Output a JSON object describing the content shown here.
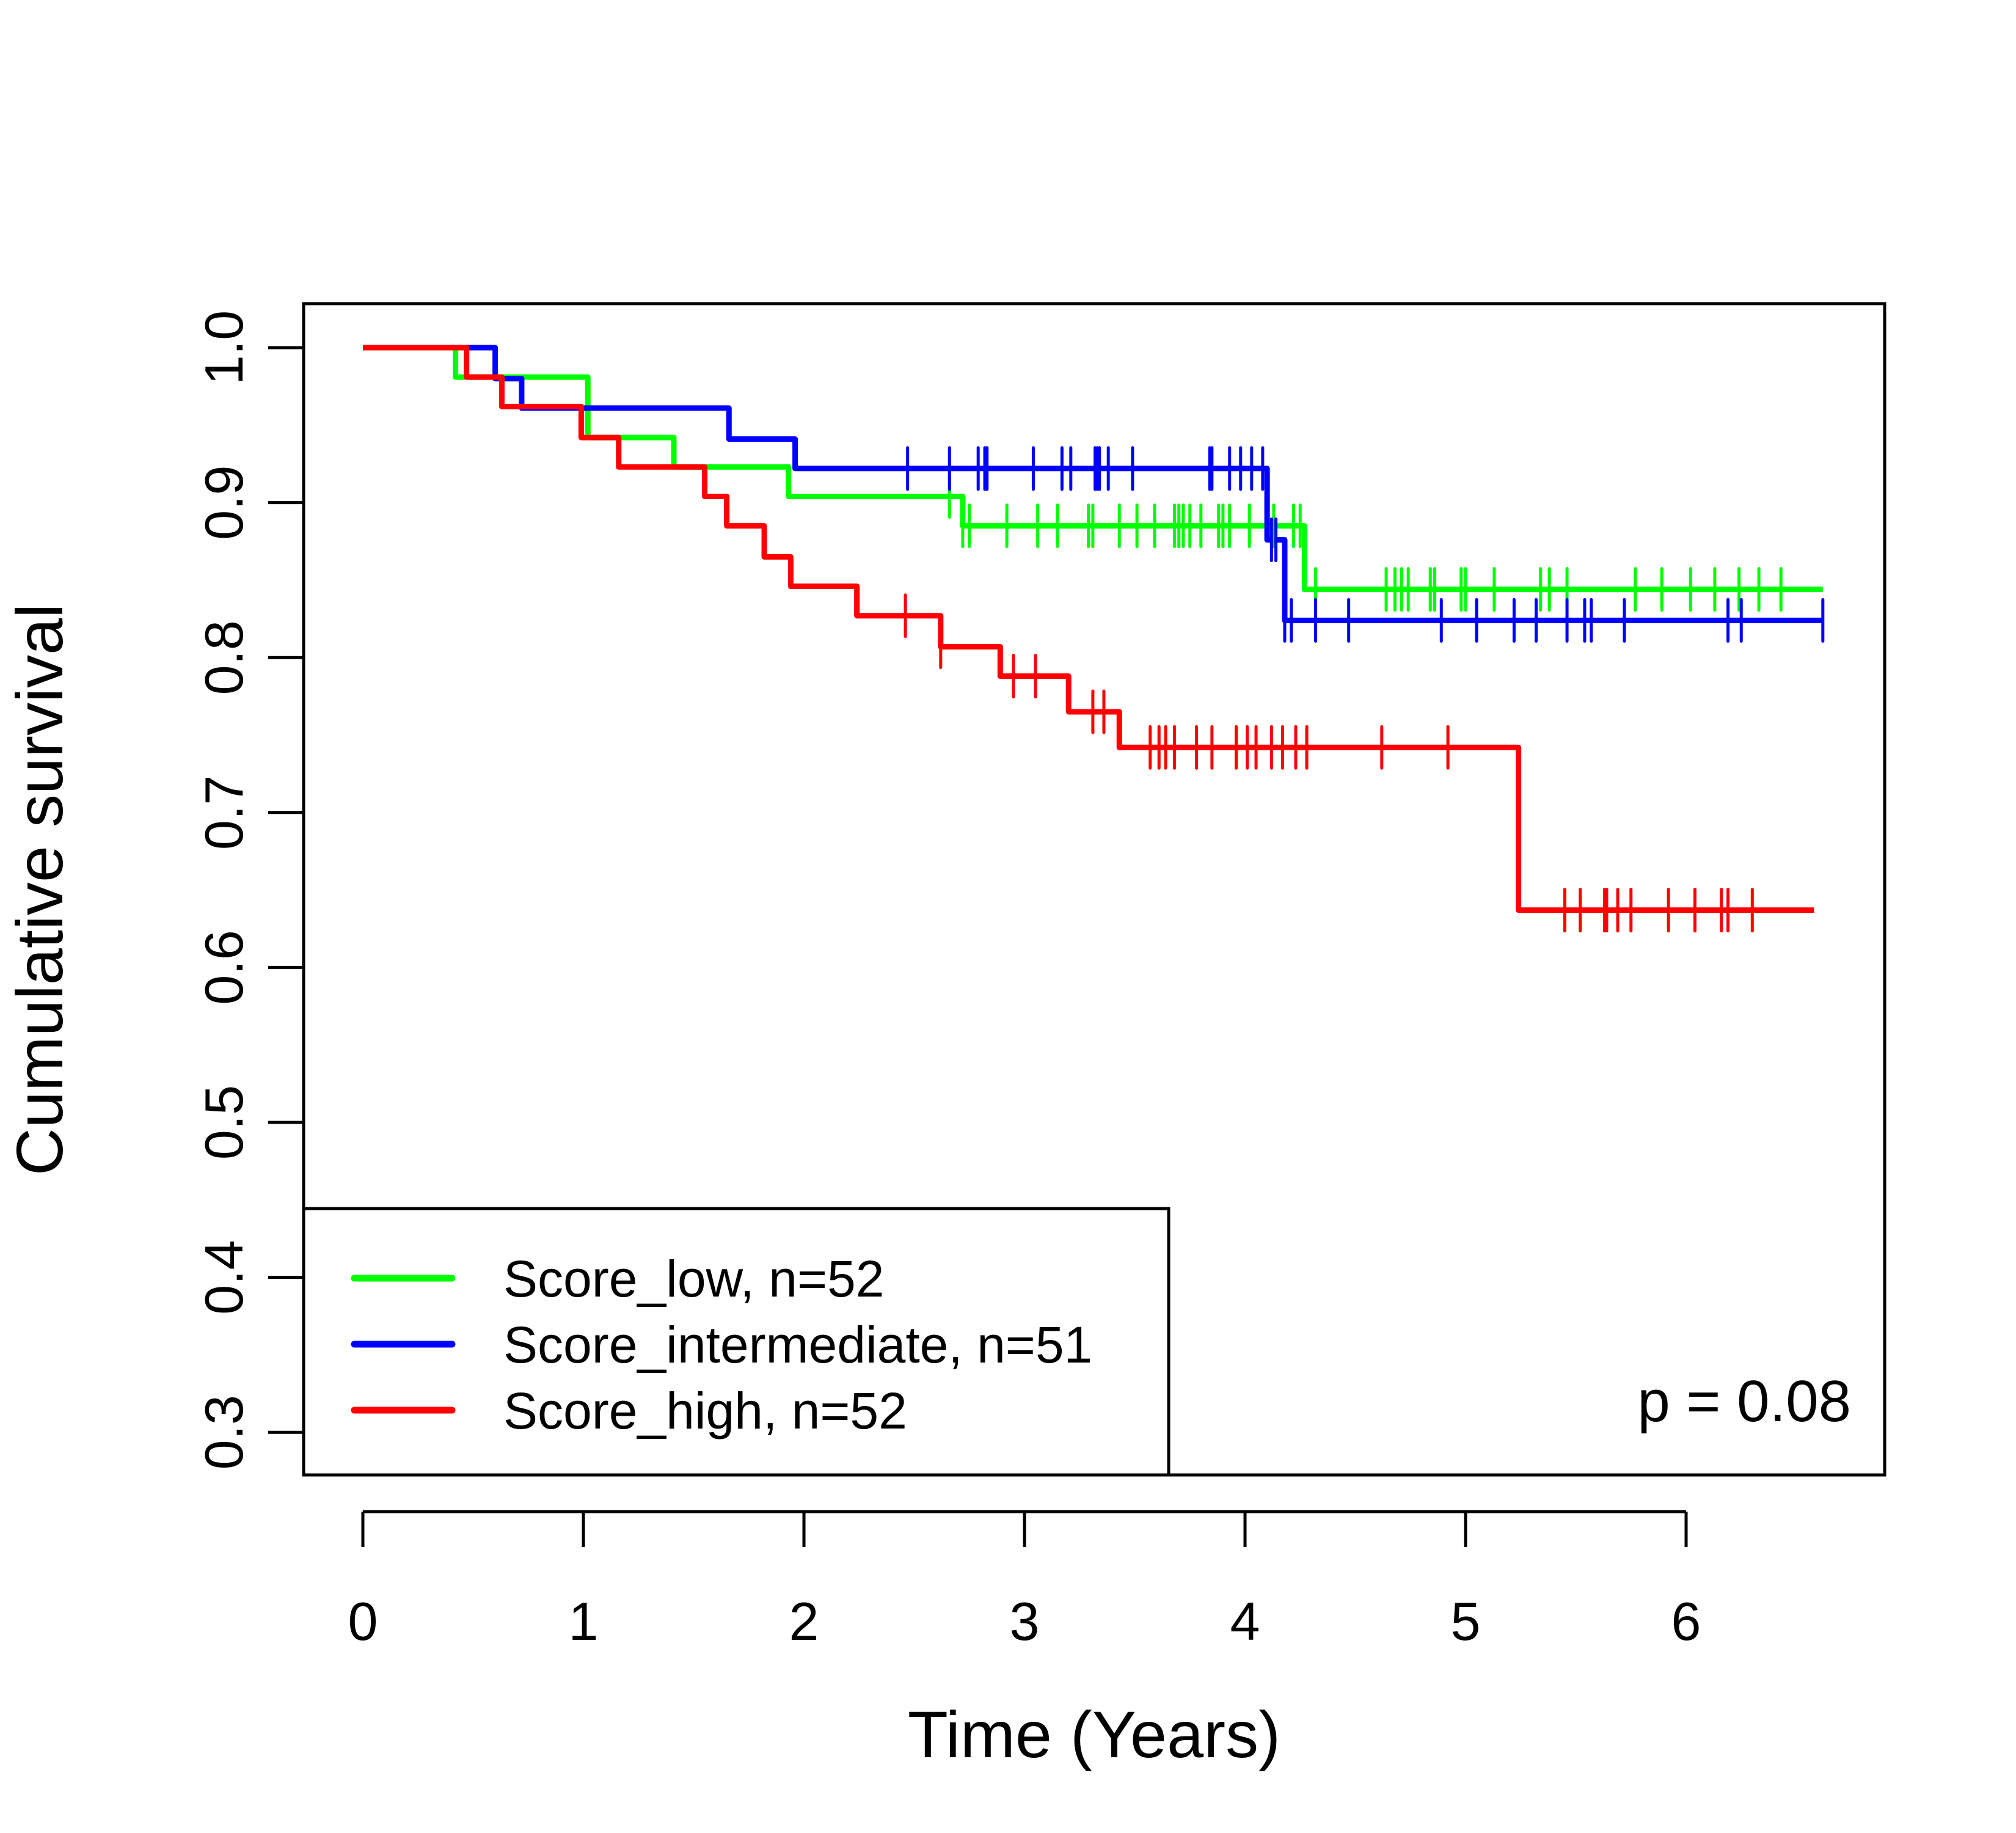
{
  "chart_data": {
    "type": "line",
    "subtype": "kaplan-meier",
    "title": "",
    "xlabel": "Time (Years)",
    "ylabel": "Cumulative survival",
    "xlim": [
      -0.27,
      6.9
    ],
    "ylim": [
      0.27,
      1.03
    ],
    "x_ticks": [
      0,
      1,
      2,
      3,
      4,
      5,
      6
    ],
    "x_tick_labels": [
      "0",
      "1",
      "2",
      "3",
      "4",
      "5",
      "6"
    ],
    "y_ticks": [
      0.3,
      0.4,
      0.5,
      0.6,
      0.7,
      0.8,
      0.9,
      1.0
    ],
    "y_tick_labels": [
      "0.3",
      "0.4",
      "0.5",
      "0.6",
      "0.7",
      "0.8",
      "0.9",
      "1.0"
    ],
    "grid": false,
    "legend_position": "bottom-left",
    "annotation": "p = 0.08",
    "series": [
      {
        "name": "Score_low, n=52",
        "color": "#00ff00",
        "steps": [
          [
            0,
            1.0
          ],
          [
            0.42,
            0.981
          ],
          [
            1.02,
            0.962
          ],
          [
            1.02,
            0.942
          ],
          [
            1.41,
            0.923
          ],
          [
            1.93,
            0.904
          ],
          [
            2.72,
            0.885
          ],
          [
            4.27,
            0.844
          ],
          [
            6.62,
            0.844
          ]
        ],
        "censor_times": [
          2.66,
          2.72,
          2.75,
          2.92,
          3.06,
          3.15,
          3.29,
          3.31,
          3.43,
          3.51,
          3.59,
          3.68,
          3.7,
          3.72,
          3.75,
          3.8,
          3.88,
          3.9,
          3.93,
          4.02,
          4.13,
          4.22,
          4.25,
          4.32,
          4.64,
          4.68,
          4.71,
          4.74,
          4.84,
          4.86,
          4.98,
          5.0,
          5.13,
          5.34,
          5.38,
          5.46,
          5.77,
          5.89,
          6.02,
          6.13,
          6.24,
          6.33,
          6.43
        ]
      },
      {
        "name": "Score_intermediate, n=51",
        "color": "#0000ff",
        "steps": [
          [
            0,
            1.0
          ],
          [
            0.6,
            0.98
          ],
          [
            0.72,
            0.961
          ],
          [
            1.66,
            0.941
          ],
          [
            1.96,
            0.922
          ],
          [
            4.1,
            0.876
          ],
          [
            4.18,
            0.824
          ],
          [
            6.62,
            0.824
          ]
        ],
        "censor_times": [
          2.47,
          2.66,
          2.79,
          2.82,
          2.83,
          3.04,
          3.17,
          3.21,
          3.32,
          3.33,
          3.34,
          3.38,
          3.49,
          3.84,
          3.85,
          3.93,
          3.98,
          4.03,
          4.08,
          4.12,
          4.14,
          4.18,
          4.21,
          4.32,
          4.47,
          4.89,
          5.05,
          5.22,
          5.32,
          5.46,
          5.54,
          5.57,
          5.72,
          6.19,
          6.25,
          6.62
        ]
      },
      {
        "name": "Score_high, n=52",
        "color": "#ff0000",
        "steps": [
          [
            0,
            1.0
          ],
          [
            0.47,
            0.981
          ],
          [
            0.63,
            0.962
          ],
          [
            0.99,
            0.942
          ],
          [
            1.16,
            0.923
          ],
          [
            1.55,
            0.904
          ],
          [
            1.65,
            0.885
          ],
          [
            1.82,
            0.865
          ],
          [
            1.94,
            0.846
          ],
          [
            2.24,
            0.827
          ],
          [
            2.62,
            0.807
          ],
          [
            2.89,
            0.788
          ],
          [
            3.2,
            0.765
          ],
          [
            3.43,
            0.742
          ],
          [
            5.24,
            0.637
          ],
          [
            6.58,
            0.637
          ]
        ],
        "censor_times": [
          2.46,
          2.62,
          2.95,
          3.05,
          3.31,
          3.36,
          3.57,
          3.61,
          3.64,
          3.68,
          3.78,
          3.85,
          3.96,
          4.01,
          4.05,
          4.12,
          4.17,
          4.23,
          4.28,
          4.62,
          4.92,
          5.45,
          5.52,
          5.63,
          5.64,
          5.69,
          5.75,
          5.92,
          6.04,
          6.16,
          6.19,
          6.3
        ]
      }
    ]
  }
}
